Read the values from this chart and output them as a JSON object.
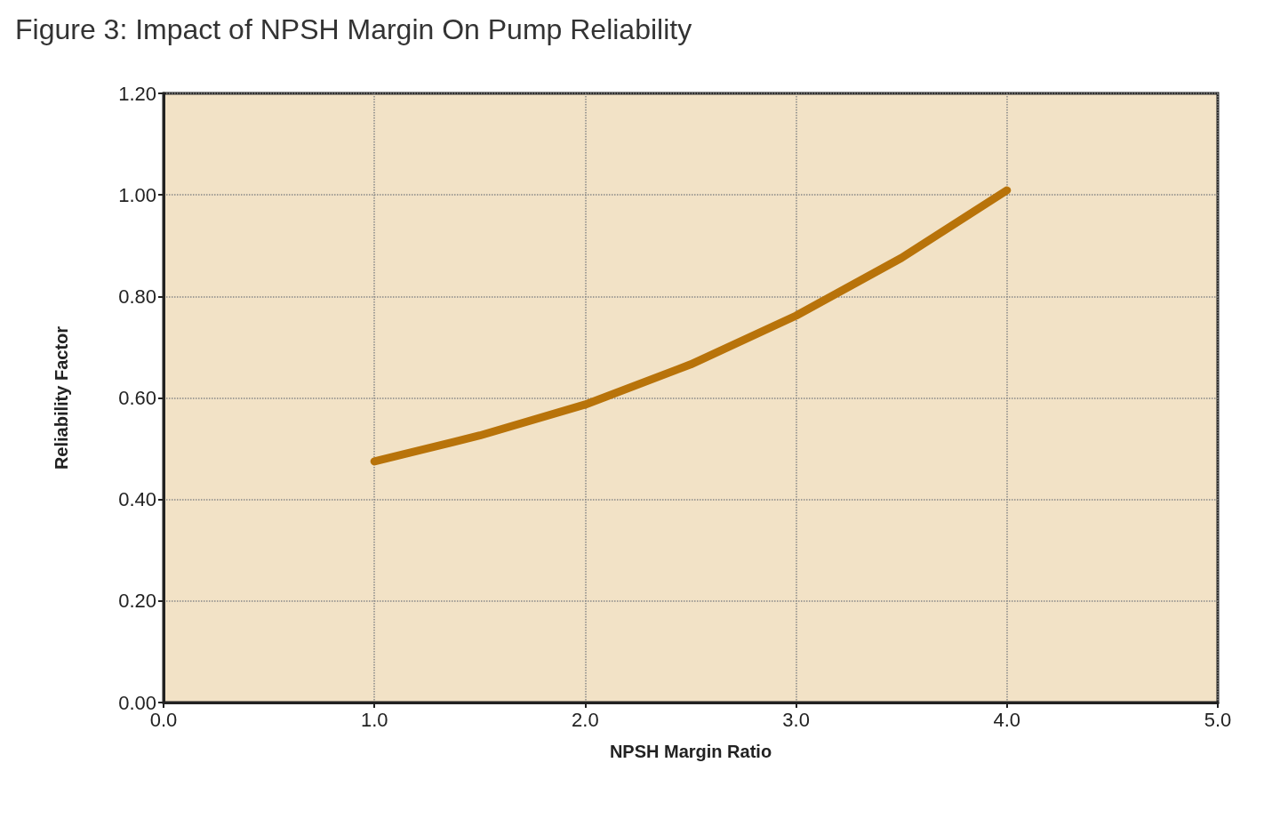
{
  "chart_data": {
    "type": "line",
    "title": "Figure 3: Impact of NPSH Margin On Pump Reliability",
    "xlabel": "NPSH Margin Ratio",
    "ylabel": "Reliability Factor",
    "x": [
      1.0,
      1.5,
      2.0,
      2.5,
      3.0,
      3.5,
      4.0
    ],
    "series": [
      {
        "color": "#b8730a",
        "values": [
          0.475,
          0.526,
          0.587,
          0.666,
          0.762,
          0.876,
          1.009
        ]
      }
    ],
    "xlim": [
      0,
      5
    ],
    "xticks": [
      {
        "value": 0,
        "label": "0.0"
      },
      {
        "value": 1,
        "label": "1.0"
      },
      {
        "value": 2,
        "label": "2.0"
      },
      {
        "value": 3,
        "label": "3.0"
      },
      {
        "value": 4,
        "label": "4.0"
      },
      {
        "value": 5,
        "label": "5.0"
      }
    ],
    "ylim": [
      0,
      1.2
    ],
    "yticks": [
      {
        "value": 0,
        "label": "0.00"
      },
      {
        "value": 0.2,
        "label": "0.20"
      },
      {
        "value": 0.4,
        "label": "0.40"
      },
      {
        "value": 0.6,
        "label": "0.60"
      },
      {
        "value": 0.8,
        "label": "0.80"
      },
      {
        "value": 1.0,
        "label": "1.00"
      },
      {
        "value": 1.2,
        "label": "1.20"
      }
    ],
    "grid": true,
    "marker": "none",
    "line_style": "solid"
  }
}
